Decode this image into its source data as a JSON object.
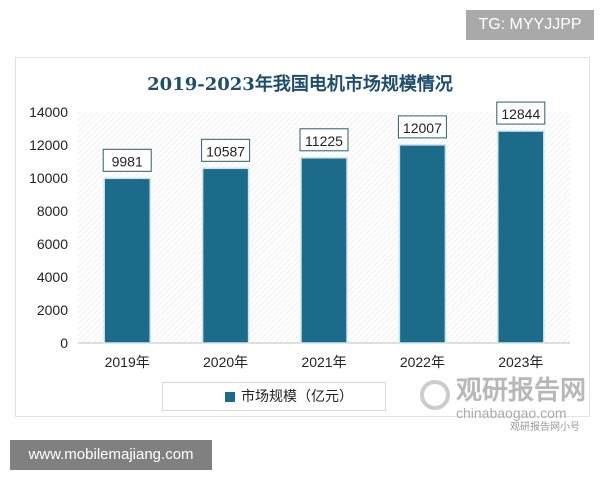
{
  "watermark_tg": "TG: MYYJJPP",
  "watermark_site": "www.mobilemajiang.com",
  "logo": {
    "cn": "观研报告网",
    "en": "chinabaogao.com",
    "sub": "观研报告网小号"
  },
  "chart_data": {
    "type": "bar",
    "title": "2019-2023年我国电机市场规模情况",
    "categories": [
      "2019年",
      "2020年",
      "2021年",
      "2022年",
      "2023年"
    ],
    "series": [
      {
        "name": "市场规模（亿元）",
        "values": [
          9981,
          10587,
          11225,
          12007,
          12844
        ]
      }
    ],
    "yticks": [
      0,
      2000,
      4000,
      6000,
      8000,
      10000,
      12000,
      14000
    ],
    "ylim": [
      0,
      14000
    ],
    "legend": "bottom",
    "grid": false,
    "bar_color": "#1d6b8a"
  }
}
